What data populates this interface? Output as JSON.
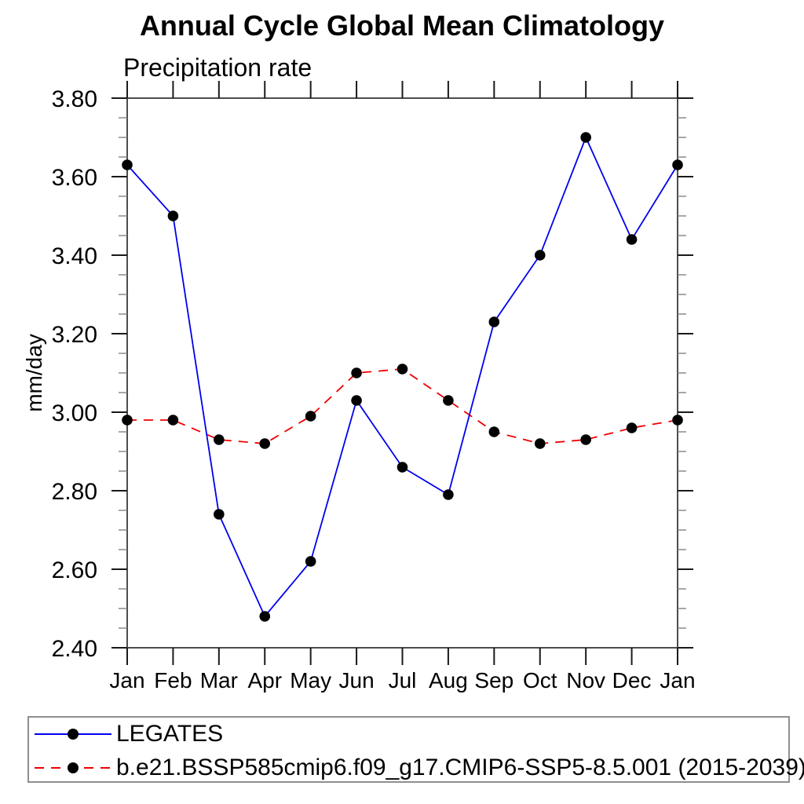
{
  "chart_data": {
    "type": "line",
    "title": "Annual Cycle Global Mean Climatology",
    "subtitle": "Precipitation rate",
    "ylabel": "mm/day",
    "xlabel": "",
    "categories": [
      "Jan",
      "Feb",
      "Mar",
      "Apr",
      "May",
      "Jun",
      "Jul",
      "Aug",
      "Sep",
      "Oct",
      "Nov",
      "Dec",
      "Jan"
    ],
    "series": [
      {
        "name": "LEGATES",
        "color": "#0000ee",
        "line_style": "solid",
        "values": [
          3.63,
          3.5,
          2.74,
          2.48,
          2.62,
          3.03,
          2.86,
          2.79,
          3.23,
          3.4,
          3.7,
          3.44,
          3.63
        ]
      },
      {
        "name": "b.e21.BSSP585cmip6.f09_g17.CMIP6-SSP5-8.5.001 (2015-2039)",
        "color": "#f00000",
        "line_style": "dashed",
        "values": [
          2.98,
          2.98,
          2.93,
          2.92,
          2.99,
          3.1,
          3.11,
          3.03,
          2.95,
          2.92,
          2.93,
          2.96,
          2.98
        ]
      }
    ],
    "marker": {
      "shape": "circle",
      "color": "#000000"
    },
    "ylim": [
      2.4,
      3.8
    ],
    "yticks": [
      2.4,
      2.6,
      2.8,
      3.0,
      3.2,
      3.4,
      3.6,
      3.8
    ],
    "y_minor_step": 0.05,
    "y_tick_decimals": 2,
    "grid": false,
    "axes_box": true,
    "legend_position": "bottom-left-box"
  }
}
